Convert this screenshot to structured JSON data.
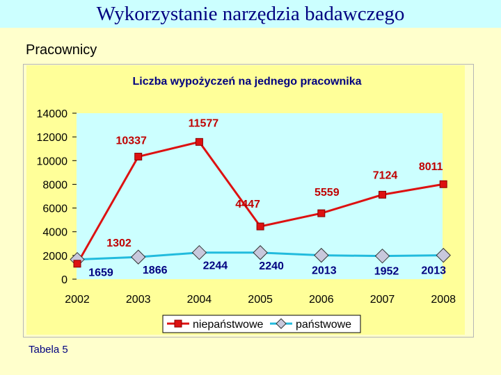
{
  "header": {
    "title": "Wykorzystanie narzędzia badawczego"
  },
  "subtitle": "Pracownicy",
  "footer": {
    "label": "Tabela 5"
  },
  "chart_data": {
    "type": "line",
    "title": "Liczba wypożyczeń na jednego pracownika",
    "x": [
      "2002",
      "2003",
      "2004",
      "2005",
      "2006",
      "2007",
      "2008"
    ],
    "ylim": [
      0,
      14000
    ],
    "yticks": [
      "0",
      "2000",
      "4000",
      "6000",
      "8000",
      "10000",
      "12000",
      "14000"
    ],
    "grid": false,
    "legend_position": "bottom",
    "series": [
      {
        "name": "niepaństwowe",
        "color": "#dd1111",
        "marker": "square",
        "values": [
          1302,
          10337,
          11577,
          4447,
          5559,
          7124,
          8011
        ]
      },
      {
        "name": "państwowe",
        "color": "#22bbdd",
        "marker": "diamond",
        "values": [
          1659,
          1866,
          2244,
          2240,
          2013,
          1952,
          2013
        ]
      }
    ],
    "labels_niepanstwowe": [
      "1302",
      "10337",
      "11577",
      "4447",
      "5559",
      "7124",
      "8011"
    ],
    "labels_panstwowe": [
      "1659",
      "1866",
      "2244",
      "2240",
      "2013",
      "1952",
      "2013"
    ]
  }
}
